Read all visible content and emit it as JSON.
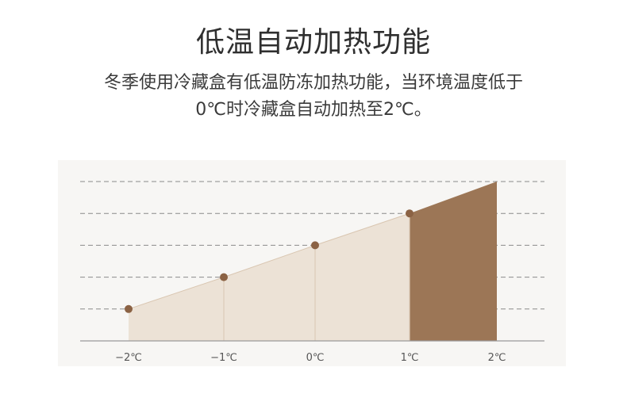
{
  "heading": "低温自动加热功能",
  "description": {
    "line1": "冬季使用冷藏盒有低温防冻加热功能，当环境温度低于",
    "line2": "0℃时冷藏盒自动加热至2℃。"
  },
  "chart_data": {
    "type": "area",
    "title": "",
    "xlabel": "",
    "ylabel": "",
    "categories": [
      "−2℃",
      "−1℃",
      "0℃",
      "1℃",
      "2℃"
    ],
    "x": [
      -2,
      -1,
      0,
      1,
      2
    ],
    "values": [
      1,
      2,
      3,
      4,
      5
    ],
    "ylim": [
      0,
      5
    ],
    "gridlines": 5,
    "grid": true,
    "markers_on": [
      "−2℃",
      "−1℃",
      "0℃",
      "1℃"
    ],
    "highlight_range": [
      "1℃",
      "2℃"
    ],
    "colors": {
      "area": "#ece2d6",
      "highlight": "#9c7656",
      "marker": "#8b6244",
      "grid": "#8a8a8a",
      "axis": "#9a9a9a"
    }
  }
}
